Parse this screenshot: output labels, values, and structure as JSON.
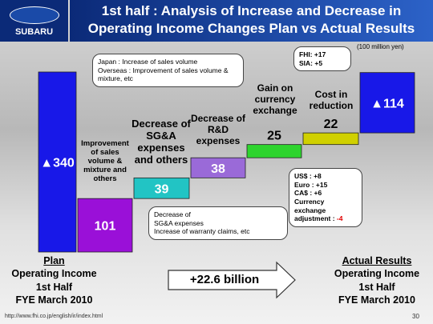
{
  "header": {
    "logo": "SUBARU",
    "title_lines": [
      "1st half : Analysis of Increase and Decrease in",
      "Operating Income Changes Plan vs Actual Results"
    ]
  },
  "unit_note": "(100 million yen)",
  "chart_data": {
    "type": "waterfall",
    "categories": [
      "Plan",
      "Improvement of sales volume & mixture and others",
      "Decrease of SG&A expenses and others",
      "Decrease of R&D expenses",
      "Gain on currency exchange",
      "Cost in reduction",
      "Actual Results"
    ],
    "values": [
      -340,
      101,
      39,
      38,
      25,
      22,
      -114
    ],
    "value_labels": [
      "▲340",
      "101",
      "39",
      "38",
      "25",
      "22",
      "▲114"
    ],
    "colors": [
      "#1818e8",
      "#9a10d8",
      "#22c4c4",
      "#9a6ad8",
      "#2ed42e",
      "#d0d000",
      "#1818e8"
    ]
  },
  "plan_caption": [
    "Operating Income",
    "1st Half",
    "FYE March 2010"
  ],
  "actual_caption": [
    "Operating Income",
    "1st Half",
    "FYE March 2010"
  ],
  "callouts": {
    "sales": [
      "Japan : Increase of sales volume",
      "Overseas : Improvement of sales volume & mixture, etc"
    ],
    "sga": [
      "Decrease of",
      "SG&A expenses",
      "Increase of warranty claims, etc"
    ],
    "fx": [
      "US$ : +8",
      "Euro : +15",
      "CA$ : +6",
      "Currency exchange adjustment :",
      "-4"
    ],
    "cost": [
      "FHI: +17",
      "SIA: +5"
    ]
  },
  "arrow_text": "+22.6 billion",
  "footer": {
    "url": "http://www.fhi.co.jp/english/ir/index.html",
    "page": "30"
  }
}
